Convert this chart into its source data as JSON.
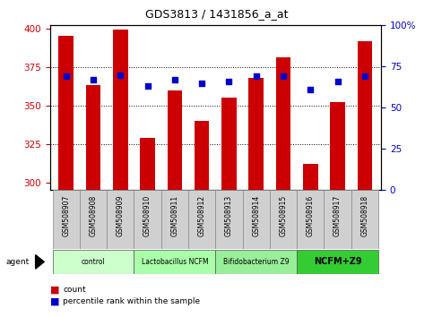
{
  "title": "GDS3813 / 1431856_a_at",
  "samples": [
    "GSM508907",
    "GSM508908",
    "GSM508909",
    "GSM508910",
    "GSM508911",
    "GSM508912",
    "GSM508913",
    "GSM508914",
    "GSM508915",
    "GSM508916",
    "GSM508917",
    "GSM508918"
  ],
  "counts": [
    395,
    363,
    399,
    329,
    360,
    340,
    355,
    368,
    381,
    312,
    352,
    392
  ],
  "percentiles": [
    69,
    67,
    70,
    63,
    67,
    65,
    66,
    69,
    69,
    61,
    66,
    69
  ],
  "ylim_left": [
    295,
    402
  ],
  "ylim_right": [
    0,
    100
  ],
  "yticks_left": [
    300,
    325,
    350,
    375,
    400
  ],
  "yticks_right": [
    0,
    25,
    50,
    75,
    100
  ],
  "bar_color": "#cc0000",
  "dot_color": "#0000cc",
  "groups": [
    {
      "label": "control",
      "start": 0,
      "end": 3,
      "color": "#ccffcc"
    },
    {
      "label": "Lactobacillus NCFM",
      "start": 3,
      "end": 6,
      "color": "#aaffaa"
    },
    {
      "label": "Bifidobacterium Z9",
      "start": 6,
      "end": 9,
      "color": "#99ee99"
    },
    {
      "label": "NCFM+Z9",
      "start": 9,
      "end": 12,
      "color": "#33cc33"
    }
  ],
  "grid_color": "#000000",
  "bar_color_left": "#cc0000",
  "tick_color_right": "#0000cc",
  "bar_bottom": 295,
  "legend_items": [
    "count",
    "percentile rank within the sample"
  ]
}
